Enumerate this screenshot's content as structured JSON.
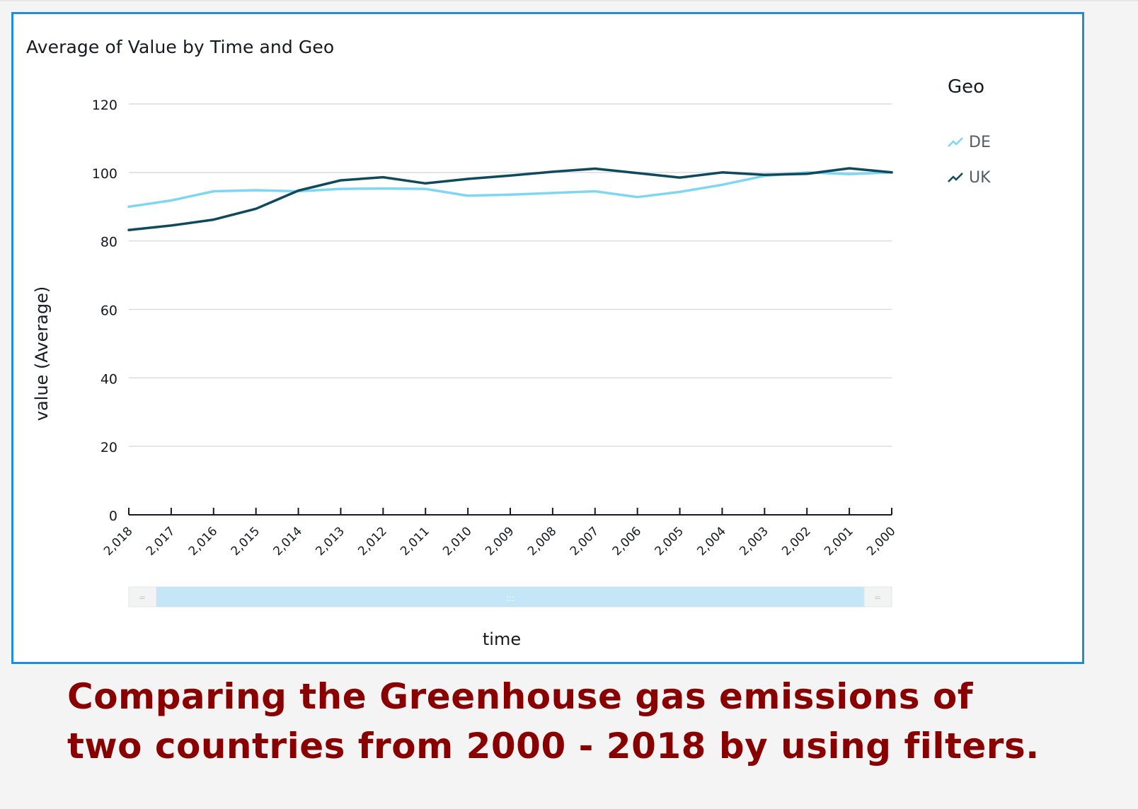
{
  "visual": {
    "title": "Average of Value by Time and Geo",
    "legend_title": "Geo"
  },
  "caption": "Comparing the Greenhouse gas emissions of two countries from 2000 - 2018 by using filters.",
  "colors": {
    "DE": "#7fd6f2",
    "UK": "#0f4a5c",
    "border": "#1e8fd6",
    "caption": "#880000"
  },
  "chart_data": {
    "type": "line",
    "title": "Average of Value by Time and Geo",
    "xlabel": "time",
    "ylabel": "value (Average)",
    "ylim": [
      0,
      120
    ],
    "yticks": [
      0,
      20,
      40,
      60,
      80,
      100,
      120
    ],
    "categories": [
      "2,018",
      "2,017",
      "2,016",
      "2,015",
      "2,014",
      "2,013",
      "2,012",
      "2,011",
      "2,010",
      "2,009",
      "2,008",
      "2,007",
      "2,006",
      "2,005",
      "2,004",
      "2,003",
      "2,002",
      "2,001",
      "2,000"
    ],
    "series": [
      {
        "name": "DE",
        "values": [
          90,
          91.8,
          94.5,
          94.8,
          94.5,
          95.2,
          95.3,
          95.2,
          93.2,
          93.5,
          94,
          94.5,
          92.8,
          94.3,
          96.4,
          99,
          100,
          99.5,
          100
        ]
      },
      {
        "name": "UK",
        "values": [
          83.2,
          84.5,
          86.2,
          89.4,
          94.7,
          97.7,
          98.6,
          96.8,
          98.1,
          99.1,
          100.2,
          101.1,
          99.8,
          98.5,
          100,
          99.3,
          99.6,
          101.2,
          100
        ]
      }
    ],
    "legend_position": "top-right",
    "grid": true
  }
}
